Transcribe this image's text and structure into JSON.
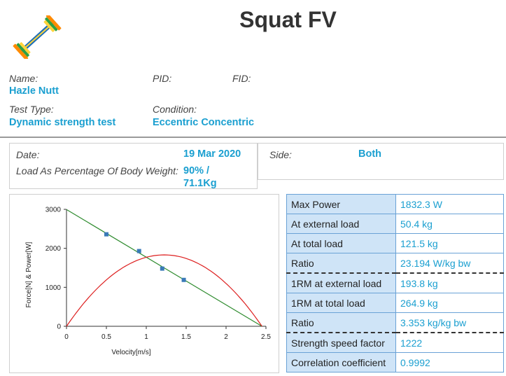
{
  "header": {
    "title": "Squat FV"
  },
  "athlete": {
    "name_label": "Name:",
    "name_value": "Hazle Nutt",
    "pid_label": "PID:",
    "fid_label": "FID:",
    "test_type_label": "Test Type:",
    "test_type_value": "Dynamic strength test",
    "condition_label": "Condition:",
    "condition_value": "Eccentric Concentric"
  },
  "session": {
    "date_label": "Date:",
    "date_value": "19 Mar 2020",
    "load_label": "Load As Percentage Of Body Weight:",
    "load_value_line1": "90% /",
    "load_value_line2": "71.1Kg",
    "side_label": "Side:",
    "side_value": "Both"
  },
  "results": [
    {
      "label": "Max Power",
      "value": "1832.3 W"
    },
    {
      "label": "At external load",
      "value": "50.4 kg"
    },
    {
      "label": "At total load",
      "value": "121.5 kg"
    },
    {
      "label": "Ratio",
      "value": "23.194 W/kg bw"
    },
    {
      "label": "1RM at external load",
      "value": "193.8 kg"
    },
    {
      "label": "1RM at total load",
      "value": "264.9 kg"
    },
    {
      "label": "Ratio",
      "value": "3.353 kg/kg bw"
    },
    {
      "label": "Strength speed factor",
      "value": "1222"
    },
    {
      "label": "Correlation coefficient",
      "value": "0.9992"
    }
  ],
  "chart_data": {
    "type": "line",
    "xlabel": "Velocity[m/s]",
    "ylabel": "Force[N] & Power[W]",
    "xlim": [
      0,
      2.5
    ],
    "ylim": [
      0,
      3000
    ],
    "x_ticks": [
      "0",
      "0.5",
      "1",
      "1.5",
      "2",
      "2.5"
    ],
    "y_ticks": [
      "0",
      "1000",
      "2000",
      "3000"
    ],
    "grid": false,
    "series": [
      {
        "kind": "force_line",
        "color": "#2e8b2e",
        "x": [
          0,
          2.45
        ],
        "y": [
          2995,
          0
        ]
      },
      {
        "kind": "power_curve",
        "color": "#dd1f1f",
        "x": [
          0,
          0.3,
          0.6,
          0.9,
          1.225,
          1.5,
          1.8,
          2.1,
          2.45
        ],
        "y": [
          0,
          795,
          1320,
          1635,
          1832,
          1730,
          1415,
          880,
          0
        ]
      },
      {
        "kind": "measured_points",
        "color": "#3a7ab8",
        "x": [
          0.5,
          0.91,
          1.2,
          1.47
        ],
        "y": [
          2360,
          1930,
          1480,
          1190
        ]
      }
    ]
  }
}
